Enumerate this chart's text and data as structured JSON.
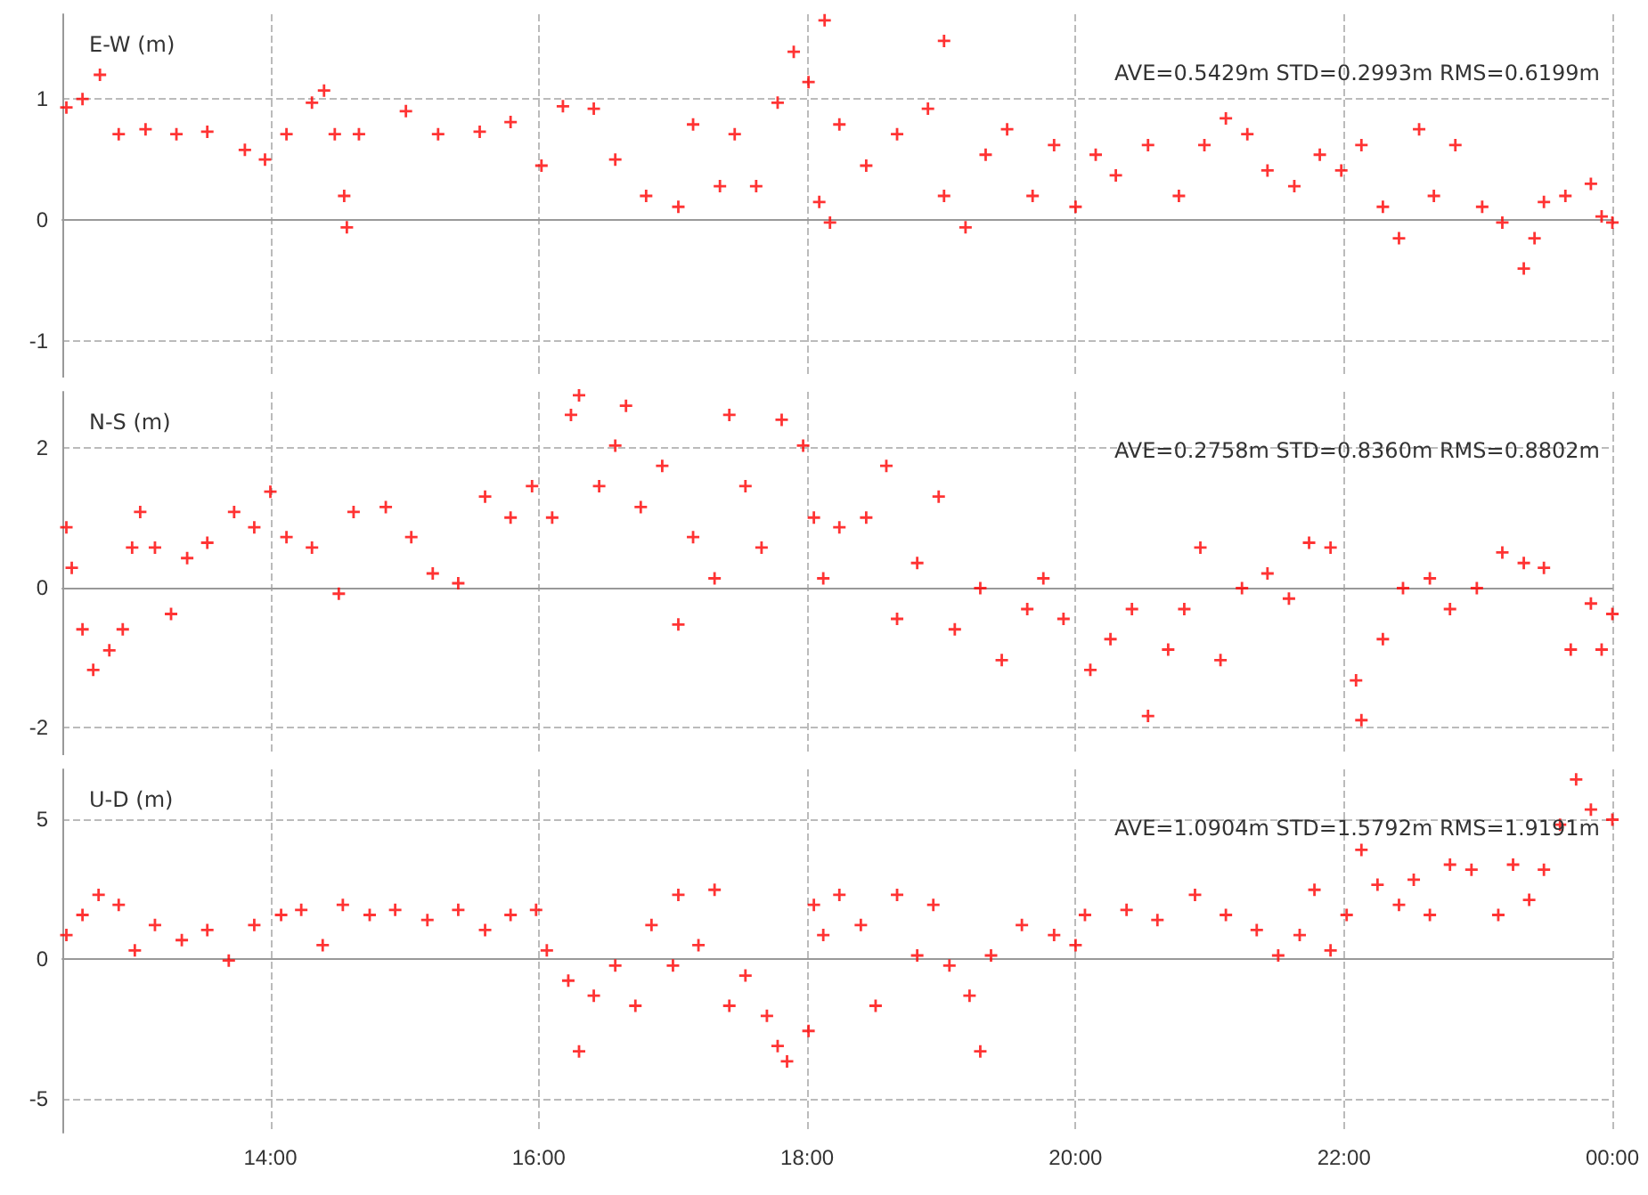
{
  "chart_data": [
    {
      "type": "scatter",
      "title": "E-W (m)",
      "annotations": [
        "AVE=0.5429m STD=0.2993m RMS=0.6199m"
      ],
      "marker": "cross",
      "grid": true,
      "tick_labels": "y",
      "xlim": [
        12.45,
        24
      ],
      "xticks": [
        {
          "value": 14,
          "label": null
        },
        {
          "value": 16,
          "label": null
        },
        {
          "value": 18,
          "label": null
        },
        {
          "value": 20,
          "label": null
        },
        {
          "value": 22,
          "label": null
        },
        {
          "value": 24,
          "label": null
        }
      ],
      "ylim": [
        -1.3,
        1.7
      ],
      "yticks": [
        -1,
        0,
        1
      ],
      "series": [
        {
          "color": "#ff0000",
          "x": [
            12.48,
            12.6,
            12.73,
            12.87,
            13.07,
            13.3,
            13.53,
            13.81,
            13.96,
            14.12,
            14.31,
            14.4,
            14.48,
            14.55,
            14.57,
            14.66,
            15.01,
            15.25,
            15.56,
            15.79,
            16.02,
            16.18,
            16.41,
            16.57,
            16.8,
            17.04,
            17.15,
            17.35,
            17.46,
            17.62,
            17.78,
            17.9,
            18.01,
            18.09,
            18.13,
            18.17,
            18.24,
            18.44,
            18.67,
            18.9,
            19.02,
            19.02,
            19.18,
            19.33,
            19.49,
            19.68,
            19.84,
            20.0,
            20.15,
            20.3,
            20.54,
            20.77,
            20.96,
            21.12,
            21.28,
            21.43,
            21.63,
            21.82,
            21.98,
            22.13,
            22.29,
            22.41,
            22.56,
            22.67,
            22.83,
            23.03,
            23.18,
            23.34,
            23.42,
            23.49,
            23.65,
            23.84,
            23.92,
            24.0
          ],
          "values": [
            0.93,
            1.0,
            1.2,
            0.71,
            0.75,
            0.71,
            0.73,
            0.58,
            0.5,
            0.71,
            0.97,
            1.07,
            0.71,
            0.2,
            -0.06,
            0.71,
            0.9,
            0.71,
            0.73,
            0.81,
            0.45,
            0.94,
            0.92,
            0.5,
            0.2,
            0.11,
            0.79,
            0.28,
            0.71,
            0.28,
            0.97,
            1.39,
            1.14,
            0.15,
            1.65,
            -0.02,
            0.79,
            0.45,
            0.71,
            0.92,
            0.2,
            1.48,
            -0.06,
            0.54,
            0.75,
            0.2,
            0.62,
            0.11,
            0.54,
            0.37,
            0.62,
            0.2,
            0.62,
            0.84,
            0.71,
            0.41,
            0.28,
            0.54,
            0.41,
            0.62,
            0.11,
            -0.15,
            0.75,
            0.2,
            0.62,
            0.11,
            -0.02,
            -0.4,
            -0.15,
            0.15,
            0.2,
            0.3,
            0.03,
            -0.02
          ]
        }
      ]
    },
    {
      "type": "scatter",
      "title": "N-S (m)",
      "annotations": [
        "AVE=0.2758m STD=0.8360m RMS=0.8802m"
      ],
      "marker": "cross",
      "grid": true,
      "tick_labels": "y",
      "xlim": [
        12.45,
        24
      ],
      "xticks": [
        {
          "value": 14,
          "label": null
        },
        {
          "value": 16,
          "label": null
        },
        {
          "value": 18,
          "label": null
        },
        {
          "value": 20,
          "label": null
        },
        {
          "value": 22,
          "label": null
        },
        {
          "value": 24,
          "label": null
        }
      ],
      "ylim": [
        -2.4,
        2.8
      ],
      "yticks": [
        -2,
        0,
        2
      ],
      "series": [
        {
          "color": "#ff0000",
          "x": [
            12.48,
            12.52,
            12.6,
            12.68,
            12.8,
            12.9,
            12.97,
            13.03,
            13.14,
            13.26,
            13.38,
            13.53,
            13.73,
            13.88,
            14.0,
            14.12,
            14.31,
            14.51,
            14.62,
            14.86,
            15.05,
            15.21,
            15.4,
            15.6,
            15.79,
            15.95,
            16.1,
            16.24,
            16.3,
            16.45,
            16.57,
            16.65,
            16.76,
            16.92,
            17.04,
            17.15,
            17.31,
            17.42,
            17.54,
            17.66,
            17.81,
            17.97,
            18.05,
            18.12,
            18.24,
            18.44,
            18.59,
            18.67,
            18.82,
            18.98,
            19.1,
            19.29,
            19.45,
            19.64,
            19.76,
            19.91,
            20.11,
            20.26,
            20.42,
            20.54,
            20.69,
            20.81,
            20.93,
            21.08,
            21.24,
            21.43,
            21.59,
            21.74,
            21.9,
            22.09,
            22.13,
            22.29,
            22.44,
            22.64,
            22.79,
            22.99,
            23.18,
            23.34,
            23.49,
            23.69,
            23.84,
            23.92,
            24.0
          ],
          "values": [
            0.86,
            0.28,
            -0.6,
            -1.18,
            -0.9,
            -0.6,
            0.57,
            1.08,
            0.57,
            -0.38,
            0.42,
            0.64,
            1.08,
            0.86,
            1.37,
            0.72,
            0.57,
            -0.09,
            1.08,
            1.15,
            0.72,
            0.2,
            0.06,
            1.3,
            1.0,
            1.45,
            1.0,
            2.47,
            2.75,
            1.45,
            2.03,
            2.6,
            1.15,
            1.74,
            -0.53,
            0.72,
            0.13,
            2.47,
            1.45,
            0.57,
            2.4,
            2.03,
            1.0,
            0.13,
            0.86,
            1.0,
            1.74,
            -0.45,
            0.35,
            1.3,
            -0.6,
            -0.01,
            -1.04,
            -0.31,
            0.13,
            -0.45,
            -1.18,
            -0.74,
            -0.31,
            -1.84,
            -0.89,
            -0.31,
            0.57,
            -1.04,
            -0.01,
            0.2,
            -0.16,
            0.64,
            0.57,
            -1.33,
            -1.9,
            -0.74,
            -0.01,
            0.13,
            -0.31,
            -0.01,
            0.5,
            0.35,
            0.28,
            -0.89,
            -0.23,
            -0.89,
            -0.38
          ]
        }
      ]
    },
    {
      "type": "scatter",
      "title": "U-D (m)",
      "annotations": [
        "AVE=1.0904m STD=1.5792m RMS=1.9191m"
      ],
      "marker": "cross",
      "grid": true,
      "xlim": [
        12.45,
        24
      ],
      "xticks": [
        {
          "value": 14,
          "label": "14:00"
        },
        {
          "value": 16,
          "label": "16:00"
        },
        {
          "value": 18,
          "label": "18:00"
        },
        {
          "value": 20,
          "label": "20:00"
        },
        {
          "value": 22,
          "label": "22:00"
        },
        {
          "value": 24,
          "label": "00:00"
        }
      ],
      "ylim": [
        -6.2,
        6.8
      ],
      "yticks": [
        -5,
        0,
        5
      ],
      "series": [
        {
          "color": "#ff0000",
          "x": [
            12.48,
            12.6,
            12.72,
            12.87,
            12.99,
            13.14,
            13.34,
            13.53,
            13.69,
            13.88,
            14.08,
            14.23,
            14.39,
            14.54,
            14.74,
            14.93,
            15.17,
            15.4,
            15.6,
            15.79,
            15.98,
            16.06,
            16.22,
            16.3,
            16.41,
            16.57,
            16.72,
            16.84,
            17.0,
            17.04,
            17.19,
            17.31,
            17.42,
            17.54,
            17.7,
            17.78,
            17.85,
            18.01,
            18.05,
            18.12,
            18.24,
            18.4,
            18.51,
            18.67,
            18.82,
            18.94,
            19.06,
            19.21,
            19.29,
            19.37,
            19.6,
            19.84,
            20.0,
            20.07,
            20.38,
            20.61,
            20.89,
            21.12,
            21.35,
            21.51,
            21.67,
            21.78,
            21.9,
            22.02,
            22.13,
            22.25,
            22.41,
            22.52,
            22.64,
            22.79,
            22.95,
            23.15,
            23.26,
            23.38,
            23.49,
            23.61,
            23.73,
            23.84,
            24.0
          ],
          "values": [
            0.87,
            1.59,
            2.31,
            1.95,
            0.32,
            1.23,
            0.69,
            1.05,
            -0.04,
            1.23,
            1.59,
            1.77,
            0.51,
            1.95,
            1.59,
            1.77,
            1.41,
            1.77,
            1.05,
            1.59,
            1.77,
            0.32,
            -0.76,
            -3.29,
            -1.3,
            -0.22,
            -1.66,
            1.23,
            -0.22,
            2.31,
            0.51,
            2.49,
            -1.66,
            -0.58,
            -2.02,
            -3.1,
            -3.65,
            -2.56,
            1.95,
            0.87,
            2.31,
            1.23,
            -1.66,
            2.31,
            0.14,
            1.95,
            -0.22,
            -1.3,
            -3.29,
            0.14,
            1.23,
            0.87,
            0.51,
            1.59,
            1.77,
            1.41,
            2.31,
            1.59,
            1.05,
            0.14,
            0.87,
            2.49,
            0.32,
            1.59,
            3.92,
            2.67,
            1.95,
            2.85,
            1.59,
            3.39,
            3.21,
            1.59,
            3.39,
            2.13,
            3.21,
            4.82,
            6.44,
            5.36,
            5.0
          ]
        }
      ]
    }
  ]
}
